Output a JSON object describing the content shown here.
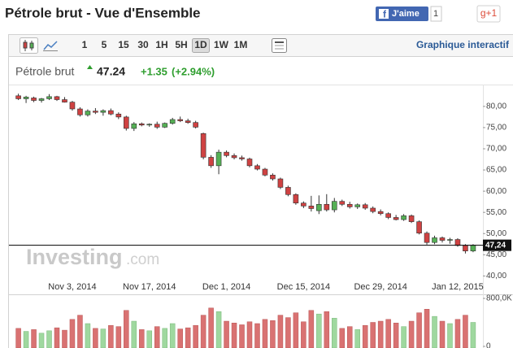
{
  "header": {
    "title": "Pétrole brut - Vue d'Ensemble",
    "like": "J'aime",
    "like_count": "1",
    "gplus": "g+1"
  },
  "toolbar": {
    "intervals": [
      "1",
      "5",
      "15",
      "30",
      "1H",
      "5H",
      "1D",
      "1W",
      "1M"
    ],
    "active_interval": 6,
    "link": "Graphique interactif"
  },
  "quote": {
    "name": "Pétrole brut",
    "price": "47.24",
    "change": "+1.35",
    "change_pct": "(+2.94%)"
  },
  "watermark": {
    "brand": "Investing",
    "suffix": ".com"
  },
  "chart_data": {
    "type": "candlestick",
    "categories": [
      null,
      null,
      null,
      null,
      null,
      null,
      null,
      "Nov 3, 2014",
      null,
      null,
      null,
      null,
      null,
      null,
      null,
      null,
      null,
      "Nov 17, 2014",
      null,
      null,
      null,
      null,
      null,
      null,
      null,
      null,
      null,
      "Dec 1, 2014",
      null,
      null,
      null,
      null,
      null,
      null,
      null,
      null,
      null,
      "Dec 15, 2014",
      null,
      null,
      null,
      null,
      null,
      null,
      null,
      null,
      null,
      "Dec 29, 2014",
      null,
      null,
      null,
      null,
      null,
      null,
      null,
      null,
      null,
      "Jan 12, 2015",
      null,
      null
    ],
    "open": [
      82.5,
      81.8,
      82.0,
      81.4,
      81.8,
      82.3,
      81.6,
      81.0,
      79.4,
      78.0,
      78.9,
      78.6,
      79.0,
      78.2,
      77.5,
      74.8,
      75.9,
      75.6,
      75.8,
      75.1,
      76.0,
      76.9,
      76.6,
      76.2,
      73.6,
      68.0,
      66.0,
      69.2,
      68.4,
      67.9,
      67.6,
      66.0,
      65.2,
      63.8,
      62.9,
      60.9,
      59.2,
      57.2,
      56.5,
      55.4,
      56.9,
      55.6,
      57.6,
      56.9,
      56.3,
      56.8,
      56.0,
      55.2,
      54.7,
      53.8,
      53.3,
      54.2,
      52.8,
      50.1,
      47.9,
      49.0,
      48.4,
      48.6,
      47.2,
      45.89
    ],
    "high": [
      83.0,
      82.5,
      82.3,
      82.0,
      82.9,
      82.5,
      82.2,
      81.3,
      79.8,
      79.3,
      79.6,
      79.3,
      79.5,
      78.6,
      77.8,
      76.3,
      76.2,
      76.0,
      76.4,
      76.2,
      77.3,
      77.6,
      77.1,
      76.6,
      73.8,
      68.5,
      69.8,
      69.6,
      68.9,
      68.4,
      67.9,
      66.4,
      65.5,
      64.2,
      63.2,
      61.3,
      59.5,
      57.6,
      58.9,
      59.0,
      59.3,
      58.4,
      58.0,
      57.5,
      57.1,
      57.2,
      56.4,
      55.7,
      55.0,
      54.4,
      54.6,
      54.5,
      53.1,
      50.5,
      49.5,
      49.3,
      49.0,
      48.9,
      47.5,
      47.5
    ],
    "low": [
      81.5,
      80.8,
      81.0,
      80.9,
      81.5,
      81.3,
      80.9,
      79.0,
      77.6,
      77.6,
      78.2,
      77.8,
      77.9,
      77.0,
      74.3,
      74.2,
      75.3,
      75.2,
      74.7,
      74.9,
      75.7,
      76.3,
      75.9,
      74.8,
      67.5,
      65.5,
      64.0,
      68.0,
      67.5,
      67.2,
      65.6,
      64.9,
      63.5,
      62.5,
      60.5,
      58.8,
      56.8,
      56.0,
      55.2,
      54.6,
      55.2,
      55.0,
      56.5,
      55.9,
      55.8,
      55.6,
      54.8,
      54.3,
      53.4,
      53.1,
      53.0,
      52.5,
      49.8,
      47.4,
      47.5,
      47.9,
      47.6,
      46.9,
      45.3,
      45.6
    ],
    "close": [
      81.8,
      82.2,
      81.4,
      81.8,
      82.3,
      81.6,
      81.0,
      79.4,
      78.0,
      78.9,
      78.6,
      79.0,
      78.2,
      77.5,
      74.8,
      75.9,
      75.6,
      75.8,
      75.1,
      76.0,
      76.9,
      76.6,
      76.2,
      75.1,
      68.0,
      66.0,
      69.2,
      68.4,
      67.9,
      67.6,
      66.0,
      65.2,
      63.8,
      62.9,
      60.9,
      59.2,
      57.2,
      56.5,
      55.9,
      56.9,
      55.6,
      57.6,
      56.9,
      56.3,
      56.8,
      56.0,
      55.2,
      54.7,
      53.8,
      53.3,
      54.2,
      52.8,
      50.1,
      47.9,
      49.0,
      48.4,
      48.6,
      47.2,
      45.89,
      47.24
    ],
    "volume": [
      300000,
      250000,
      280000,
      220000,
      260000,
      310000,
      270000,
      450000,
      520000,
      380000,
      300000,
      290000,
      350000,
      330000,
      600000,
      420000,
      280000,
      260000,
      330000,
      300000,
      380000,
      290000,
      310000,
      350000,
      520000,
      640000,
      580000,
      420000,
      390000,
      360000,
      410000,
      380000,
      450000,
      430000,
      520000,
      480000,
      560000,
      410000,
      600000,
      540000,
      580000,
      470000,
      300000,
      330000,
      280000,
      350000,
      400000,
      420000,
      450000,
      390000,
      330000,
      420000,
      560000,
      620000,
      500000,
      420000,
      380000,
      450000,
      520000,
      400000
    ],
    "up_color": "#55b055",
    "down_color": "#cf4242",
    "volume_up_color": "#9fd89f",
    "volume_down_color": "#d97272",
    "ylim": [
      39.5,
      84
    ],
    "yticks": [
      {
        "value": 40,
        "label": "40,00"
      },
      {
        "value": 45,
        "label": "45,00"
      },
      {
        "value": 50,
        "label": "50,00"
      },
      {
        "value": 55,
        "label": "55,00"
      },
      {
        "value": 60,
        "label": "60,00"
      },
      {
        "value": 65,
        "label": "65,00"
      },
      {
        "value": 70,
        "label": "70,00"
      },
      {
        "value": 75,
        "label": "75,00"
      },
      {
        "value": 80,
        "label": "80,00"
      }
    ],
    "volume_ylim": [
      0,
      800000
    ],
    "volume_ticks": [
      {
        "value": 800000,
        "label": "800,0K"
      },
      0
    ],
    "last_price": {
      "value": 47.24,
      "label": "47,24"
    }
  }
}
